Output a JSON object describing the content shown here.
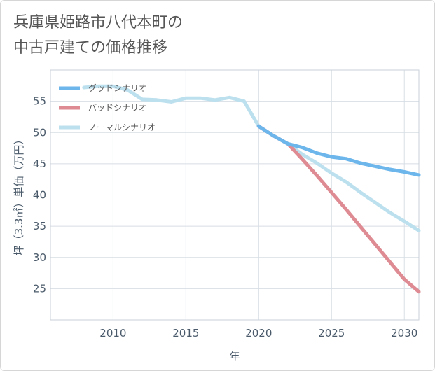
{
  "title": {
    "line1": "兵庫県姫路市八代本町の",
    "line2": "中古戸建ての価格推移"
  },
  "chart_data": {
    "type": "line",
    "title": "兵庫県姫路市八代本町の中古戸建ての価格推移",
    "xlabel": "年",
    "ylabel": "坪（3.3㎡）単価（万円）",
    "xlim": [
      2005.7,
      2031
    ],
    "ylim": [
      20,
      60
    ],
    "x_ticks": [
      2010,
      2015,
      2020,
      2025,
      2030
    ],
    "y_ticks": [
      25,
      30,
      35,
      40,
      45,
      50,
      55
    ],
    "grid": true,
    "legend_position": "top-left",
    "series": [
      {
        "name": "グッドシナリオ",
        "color": "#6cb6ec",
        "x": [
          2020,
          2021,
          2022,
          2023,
          2024,
          2025,
          2026,
          2027,
          2028,
          2029,
          2030,
          2031
        ],
        "values": [
          51.0,
          49.5,
          48.2,
          47.6,
          46.7,
          46.1,
          45.8,
          45.1,
          44.6,
          44.1,
          43.7,
          43.2
        ]
      },
      {
        "name": "バッドシナリオ",
        "color": "#de8b93",
        "x": [
          2020,
          2021,
          2022,
          2023,
          2024,
          2025,
          2026,
          2027,
          2028,
          2029,
          2030,
          2031
        ],
        "values": [
          51.0,
          49.5,
          48.2,
          45.7,
          43.1,
          40.4,
          37.7,
          34.9,
          32.1,
          29.3,
          26.5,
          24.5
        ]
      },
      {
        "name": "ノーマルシナリオ",
        "color": "#bde0ee",
        "x": [
          2008,
          2009,
          2010,
          2011,
          2012,
          2013,
          2014,
          2015,
          2016,
          2017,
          2018,
          2019,
          2020,
          2021,
          2022,
          2023,
          2024,
          2025,
          2026,
          2027,
          2028,
          2029,
          2030,
          2031
        ],
        "values": [
          57.2,
          57.4,
          57.4,
          56.8,
          55.3,
          55.2,
          54.9,
          55.5,
          55.5,
          55.2,
          55.6,
          55.0,
          51.0,
          49.5,
          48.2,
          46.5,
          45.1,
          43.5,
          42.1,
          40.4,
          38.8,
          37.2,
          35.8,
          34.3
        ]
      }
    ]
  }
}
